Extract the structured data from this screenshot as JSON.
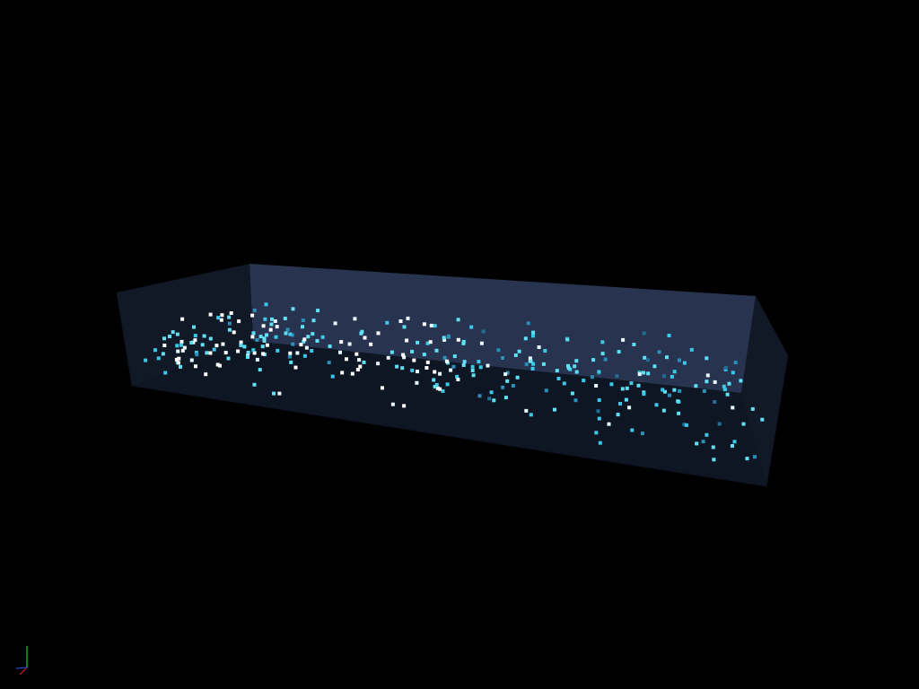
{
  "viewport": {
    "background": "#000000",
    "view": "3d-perspective"
  },
  "box": {
    "back_wall_color": "#2b3858",
    "floor_color": "#111827",
    "side_wall_color": "#141c2a",
    "front_wall_color": "#0d1220",
    "opacity": 0.9
  },
  "particles": {
    "count": 340,
    "colors": [
      "#ffffff",
      "#e6fbff",
      "#5fe0f5",
      "#3cc8e8",
      "#2b8fb8",
      "#1f6f95"
    ],
    "seed": 20240613
  },
  "axes_gizmo": {
    "axes": [
      {
        "name": "x",
        "color": "#cc2222"
      },
      {
        "name": "y",
        "color": "#22cc22"
      },
      {
        "name": "z",
        "color": "#2244cc"
      }
    ]
  }
}
